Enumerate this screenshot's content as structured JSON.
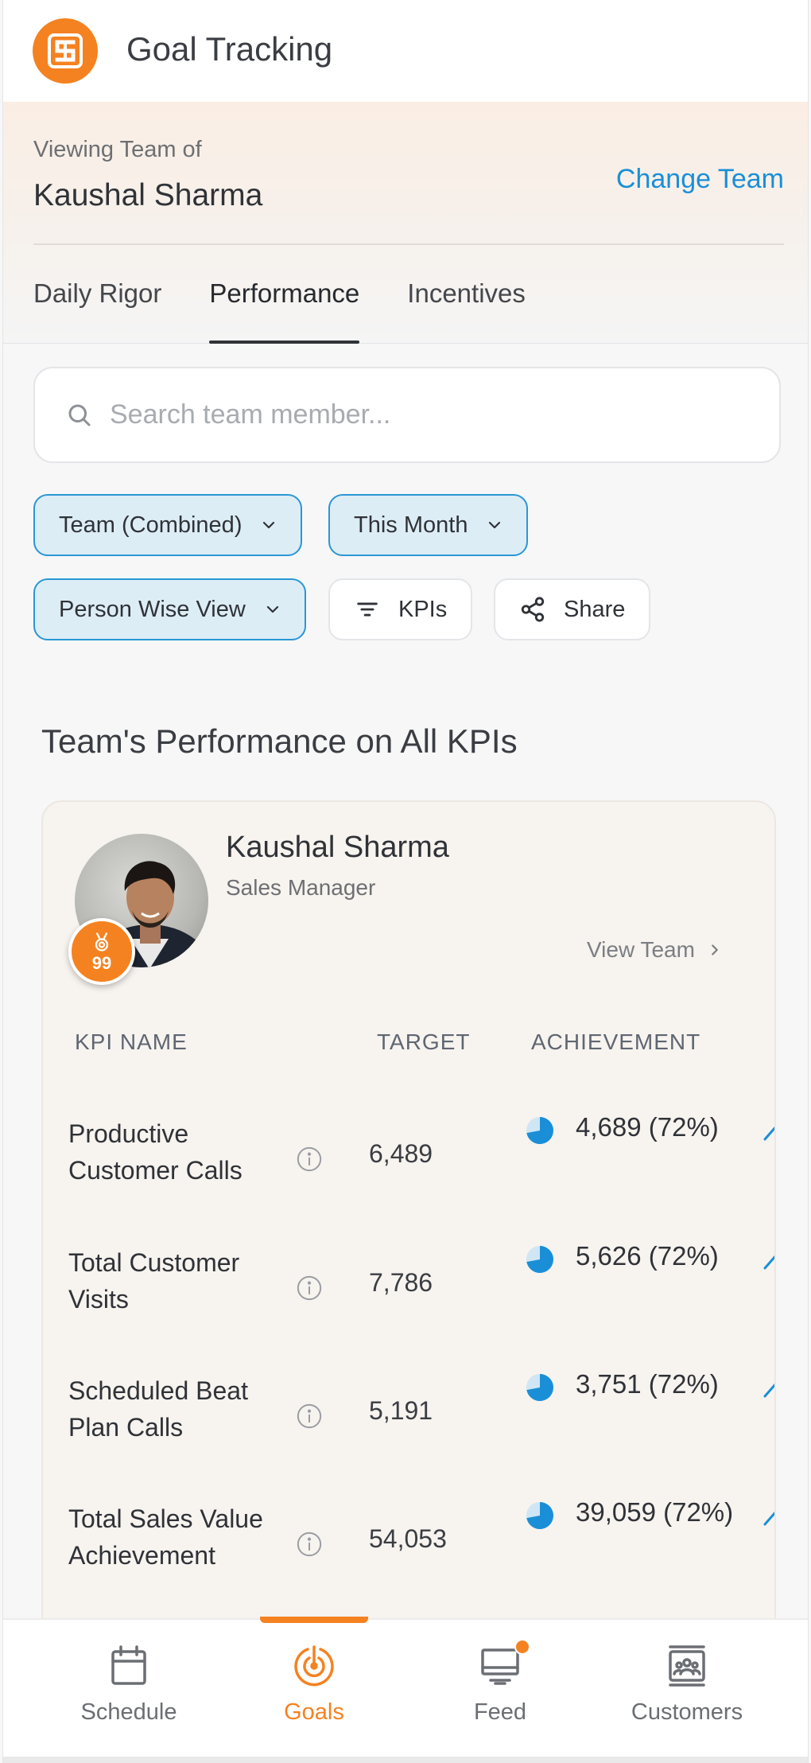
{
  "app": {
    "title": "Goal Tracking",
    "brand_color": "#f58220",
    "accent_color": "#1a8fd8"
  },
  "header": {
    "viewing_label": "Viewing Team of",
    "viewing_name": "Kaushal Sharma",
    "change_team": "Change Team",
    "tabs": [
      {
        "label": "Daily Rigor",
        "active": false
      },
      {
        "label": "Performance",
        "active": true
      },
      {
        "label": "Incentives",
        "active": false
      }
    ]
  },
  "search": {
    "placeholder": "Search team member...",
    "value": ""
  },
  "filters": {
    "team": "Team (Combined)",
    "period": "This Month",
    "view": "Person Wise View",
    "kpis": "KPIs",
    "share": "Share"
  },
  "section_title": "Team's Performance on All KPIs",
  "card": {
    "name": "Kaushal Sharma",
    "role": "Sales Manager",
    "badge_score": "99",
    "view_team": "View Team",
    "columns": {
      "kpi": "KPI NAME",
      "target": "TARGET",
      "achievement": "ACHIEVEMENT"
    },
    "kpis": [
      {
        "name": "Productive Customer Calls",
        "target": "6,489",
        "achievement": "4,689 (72%)",
        "fraction": 0.72
      },
      {
        "name": "Total Customer Visits",
        "target": "7,786",
        "achievement": "5,626 (72%)",
        "fraction": 0.72
      },
      {
        "name": "Scheduled Beat Plan Calls",
        "target": "5,191",
        "achievement": "3,751 (72%)",
        "fraction": 0.72
      },
      {
        "name": "Total Sales Value Achievement",
        "target": "54,053",
        "achievement": "39,059 (72%)",
        "fraction": 0.72
      }
    ]
  },
  "nav": {
    "items": [
      {
        "label": "Schedule",
        "icon": "calendar-icon",
        "active": false
      },
      {
        "label": "Goals",
        "icon": "target-icon",
        "active": true
      },
      {
        "label": "Feed",
        "icon": "monitor-icon",
        "active": false,
        "has_notification": true
      },
      {
        "label": "Customers",
        "icon": "customers-icon",
        "active": false
      }
    ]
  }
}
